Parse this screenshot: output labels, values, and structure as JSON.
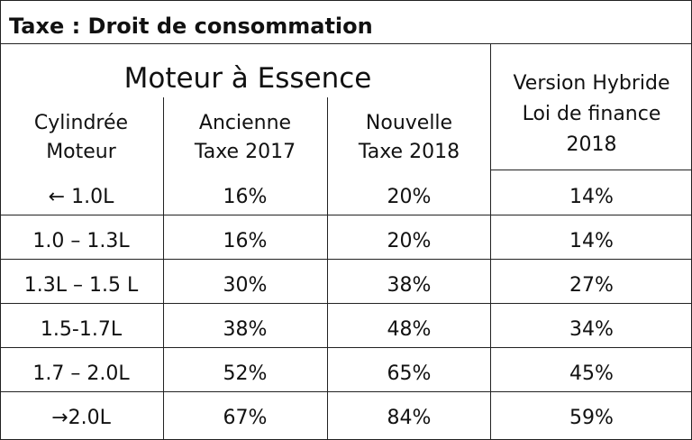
{
  "title": "Taxe : Droit de consommation",
  "group_header": "Moteur à Essence",
  "columns": {
    "cylindree": [
      "Cylindrée",
      "Moteur"
    ],
    "ancienne": [
      "Ancienne",
      "Taxe 2017"
    ],
    "nouvelle": [
      "Nouvelle",
      "Taxe 2018"
    ],
    "hybride": [
      "Version Hybride",
      "Loi de finance",
      "2018"
    ]
  },
  "rows": [
    {
      "cylindree": "← 1.0L",
      "ancienne": "16%",
      "nouvelle": "20%",
      "hybride": "14%"
    },
    {
      "cylindree": "1.0 – 1.3L",
      "ancienne": "16%",
      "nouvelle": "20%",
      "hybride": "14%"
    },
    {
      "cylindree": "1.3L – 1.5 L",
      "ancienne": "30%",
      "nouvelle": "38%",
      "hybride": "27%"
    },
    {
      "cylindree": "1.5-1.7L",
      "ancienne": "38%",
      "nouvelle": "48%",
      "hybride": "34%"
    },
    {
      "cylindree": "1.7 – 2.0L",
      "ancienne": "52%",
      "nouvelle": "65%",
      "hybride": "45%"
    },
    {
      "cylindree": "→2.0L",
      "ancienne": "67%",
      "nouvelle": "84%",
      "hybride": "59%"
    }
  ]
}
